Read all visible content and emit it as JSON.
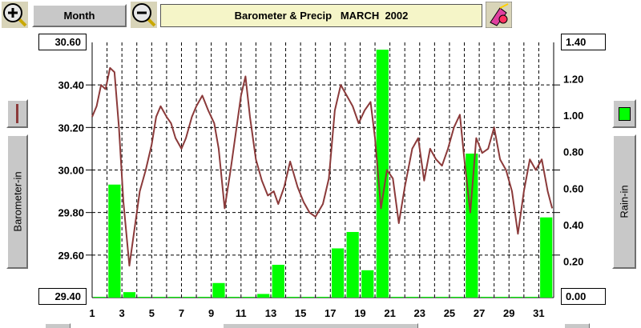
{
  "toolbar": {
    "period_label": "Month",
    "title": "Barometer & Precip   MARCH  2002",
    "zoom_in_icon": "magnifier-plus-icon",
    "zoom_out_icon": "magnifier-minus-icon",
    "tool_icon": "paint-tool-icon"
  },
  "left_axis": {
    "label": "Barometer-in",
    "top_value": "30.60",
    "bottom_value": "29.40",
    "swatch_color": "#8b3a3a"
  },
  "right_axis": {
    "label": "Rain-in",
    "top_value": "1.40",
    "bottom_value": "0.00",
    "swatch_color": "#00ff00"
  },
  "chart_data": {
    "type": "line",
    "x_ticks": [
      "1",
      "3",
      "5",
      "7",
      "9",
      "11",
      "13",
      "15",
      "17",
      "19",
      "21",
      "23",
      "25",
      "27",
      "29",
      "31"
    ],
    "y_left_ticks": [
      "30.40",
      "30.20",
      "30.00",
      "29.80",
      "29.60"
    ],
    "y_right_ticks": [
      "1.20",
      "1.00",
      "0.80",
      "0.60",
      "0.40",
      "0.20"
    ],
    "y_left_range": [
      29.4,
      30.6
    ],
    "y_right_range": [
      0,
      1.4
    ],
    "x_range": [
      1,
      32
    ],
    "grid": true,
    "colors": {
      "barometer": "#8b3a3a",
      "rain": "#00ff00",
      "grid": "#000000"
    },
    "rain_days": [
      1,
      2,
      3,
      4,
      5,
      6,
      7,
      8,
      9,
      10,
      11,
      12,
      13,
      14,
      15,
      16,
      17,
      18,
      19,
      20,
      21,
      22,
      23,
      24,
      25,
      26,
      27,
      28,
      29,
      30,
      31
    ],
    "rain_values": [
      0,
      0.62,
      0.03,
      0,
      0,
      0,
      0,
      0,
      0.08,
      0,
      0,
      0.02,
      0.18,
      0,
      0,
      0,
      0.27,
      0.36,
      0.15,
      1.36,
      0,
      0,
      0,
      0,
      0,
      0.79,
      0,
      0,
      0,
      0,
      0.44
    ],
    "pressure_days": [
      1.0,
      1.3,
      1.6,
      1.9,
      2.2,
      2.5,
      2.8,
      3.1,
      3.5,
      3.8,
      4.2,
      4.6,
      5.0,
      5.3,
      5.6,
      6.0,
      6.3,
      6.6,
      7.0,
      7.3,
      7.7,
      8.0,
      8.4,
      8.8,
      9.2,
      9.5,
      9.9,
      10.3,
      10.7,
      11.0,
      11.3,
      11.6,
      12.0,
      12.4,
      12.8,
      13.2,
      13.5,
      13.9,
      14.3,
      14.8,
      15.2,
      15.6,
      16.0,
      16.5,
      16.9,
      17.3,
      17.7,
      18.1,
      18.5,
      18.9,
      19.3,
      19.7,
      20.0,
      20.4,
      20.8,
      21.2,
      21.6,
      22.0,
      22.5,
      22.9,
      23.3,
      23.7,
      24.1,
      24.5,
      24.9,
      25.3,
      25.7,
      26.0,
      26.4,
      26.8,
      27.2,
      27.6,
      28.0,
      28.4,
      28.8,
      29.2,
      29.6,
      30.0,
      30.4,
      30.8,
      31.2,
      31.6,
      31.9
    ],
    "pressure_values": [
      30.25,
      30.3,
      30.4,
      30.38,
      30.48,
      30.46,
      30.2,
      29.85,
      29.55,
      29.7,
      29.9,
      30.0,
      30.12,
      30.25,
      30.3,
      30.25,
      30.22,
      30.15,
      30.1,
      30.15,
      30.25,
      30.3,
      30.35,
      30.28,
      30.22,
      30.1,
      29.82,
      30.0,
      30.2,
      30.35,
      30.44,
      30.25,
      30.05,
      29.95,
      29.88,
      29.9,
      29.84,
      29.92,
      30.04,
      29.92,
      29.85,
      29.8,
      29.78,
      29.84,
      29.96,
      30.28,
      30.4,
      30.35,
      30.3,
      30.22,
      30.28,
      30.32,
      30.15,
      29.82,
      30.0,
      29.96,
      29.75,
      29.92,
      30.1,
      30.15,
      29.95,
      30.1,
      30.05,
      30.02,
      30.1,
      30.2,
      30.26,
      30.05,
      29.8,
      30.15,
      30.08,
      30.1,
      30.2,
      30.05,
      30.0,
      29.9,
      29.7,
      29.9,
      30.05,
      30.0,
      30.05,
      29.9,
      29.82
    ]
  }
}
